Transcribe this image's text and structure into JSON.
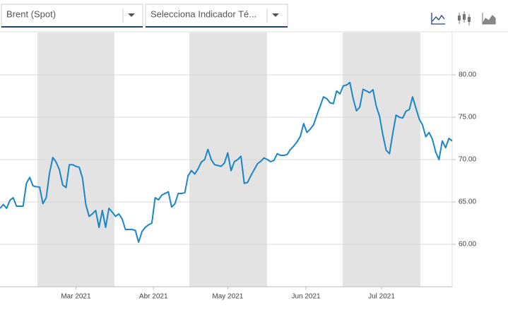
{
  "controls": {
    "series_select": "Brent (Spot)",
    "indicator_select": "Selecciona Indicador Té..."
  },
  "chart_data": {
    "type": "line",
    "series": [
      {
        "name": "Brent (Spot)",
        "color": "#1a86c8",
        "values": [
          64.25,
          64.7,
          64.25,
          65.2,
          65.5,
          64.5,
          64.5,
          64.5,
          67.2,
          67.9,
          66.9,
          66.8,
          66.75,
          64.8,
          65.5,
          68.4,
          70.25,
          69.7,
          68.8,
          67,
          66.7,
          69.4,
          69.4,
          69.2,
          69.1,
          67.8,
          64.7,
          63.3,
          63.6,
          64,
          62,
          64,
          62,
          64.25,
          63.8,
          63.3,
          63.6,
          63,
          61.75,
          61.75,
          61.75,
          61.65,
          60.25,
          61.5,
          62,
          62.3,
          62.5,
          65.5,
          65.25,
          65.8,
          66,
          66.2,
          64.4,
          64.8,
          66,
          66,
          66.1,
          68.1,
          68.7,
          68.3,
          68.9,
          69.7,
          70,
          71.2,
          70,
          69.4,
          69.3,
          69.2,
          69.6,
          70.8,
          68.7,
          69.75,
          70,
          70.4,
          67.2,
          67.3,
          68.1,
          68.8,
          69.5,
          69.8,
          70.2,
          70,
          69.75,
          69.9,
          70.7,
          70.5,
          70.5,
          70.6,
          71.2,
          71.6,
          72.1,
          72.75,
          74.25,
          73.2,
          73.6,
          74.1,
          75.25,
          76.3,
          77.4,
          77.2,
          76.7,
          76.6,
          78.1,
          77.75,
          78.7,
          78.8,
          79.1,
          77.2,
          75.75,
          76.2,
          78.3,
          78.1,
          77.9,
          78.25,
          76.3,
          75.1,
          72.9,
          71.1,
          70.7,
          73.1,
          75.25,
          75,
          74.9,
          75.7,
          75.9,
          77.4,
          76.1,
          74.8,
          74.1,
          72.7,
          73.2,
          72.4,
          70.9,
          70,
          72.2,
          71.4,
          72.5,
          72.2
        ]
      }
    ],
    "xlim": [
      0,
      137
    ],
    "xticks": [
      {
        "value": 23,
        "label": "Mar 2021"
      },
      {
        "value": 46.5,
        "label": "Abr 2021"
      },
      {
        "value": 69,
        "label": "May 2021"
      },
      {
        "value": 92.7,
        "label": "Jun 2021"
      },
      {
        "value": 115.6,
        "label": "Jul 2021"
      }
    ],
    "ylim": [
      55,
      85
    ],
    "yticks": [
      {
        "value": 60,
        "label": "60.00"
      },
      {
        "value": 65,
        "label": "65.00"
      },
      {
        "value": 70,
        "label": "70.00"
      },
      {
        "value": 75,
        "label": "75.00"
      },
      {
        "value": 80,
        "label": "80.00"
      }
    ],
    "grid": true
  }
}
